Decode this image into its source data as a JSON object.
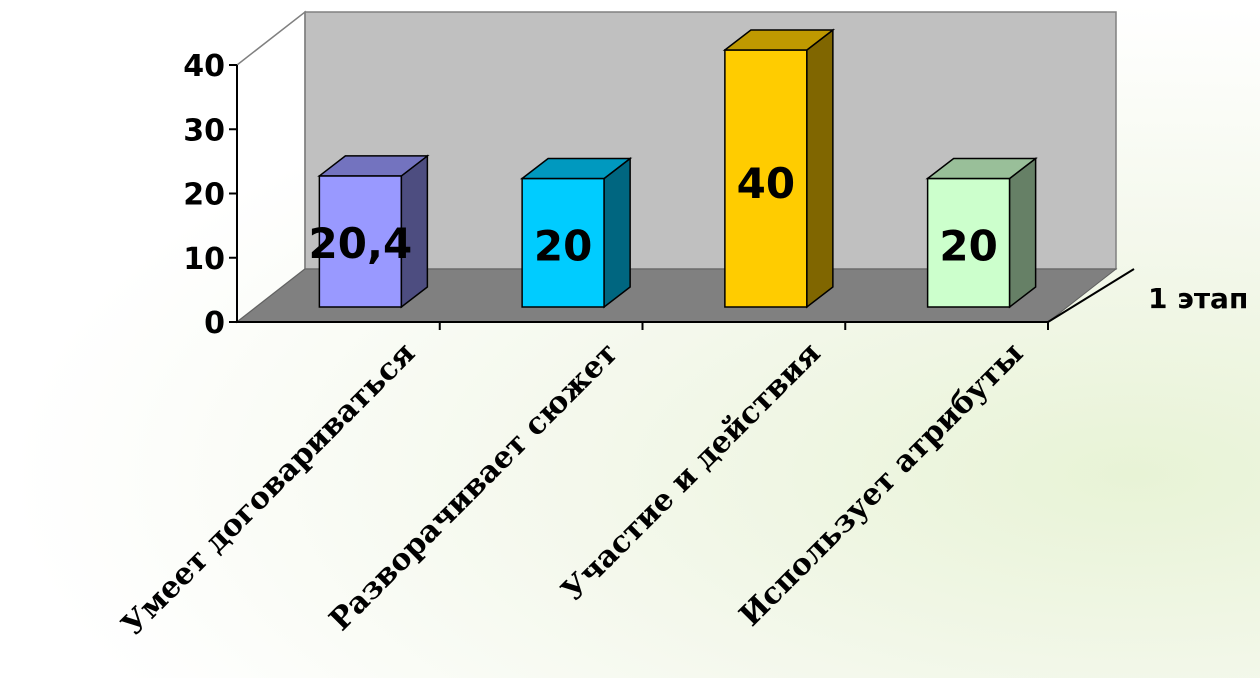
{
  "chart_data": {
    "type": "bar",
    "categories": [
      "Умеет договариваться",
      "Разворачивает сюжет",
      "Участие и действия",
      "Использует атрибуты"
    ],
    "series": [
      {
        "name": "1 этап",
        "values": [
          20.4,
          20,
          40,
          20
        ]
      }
    ],
    "data_labels": [
      "20,4",
      "20",
      "40",
      "20"
    ],
    "y_ticks": [
      "0",
      "10",
      "20",
      "30",
      "40"
    ],
    "ylim": [
      0,
      40
    ],
    "colors": {
      "front": [
        "#9999ff",
        "#00ccff",
        "#ffcc00",
        "#ccffcc"
      ],
      "side": [
        "#4d4d80",
        "#006680",
        "#806600",
        "#668066"
      ],
      "top": [
        "#7373bf",
        "#0099bf",
        "#bf9900",
        "#99bf99"
      ],
      "back_wall": "#c0c0c0",
      "floor": "#808080"
    },
    "legend": "right",
    "grid": false,
    "style": "3d"
  }
}
